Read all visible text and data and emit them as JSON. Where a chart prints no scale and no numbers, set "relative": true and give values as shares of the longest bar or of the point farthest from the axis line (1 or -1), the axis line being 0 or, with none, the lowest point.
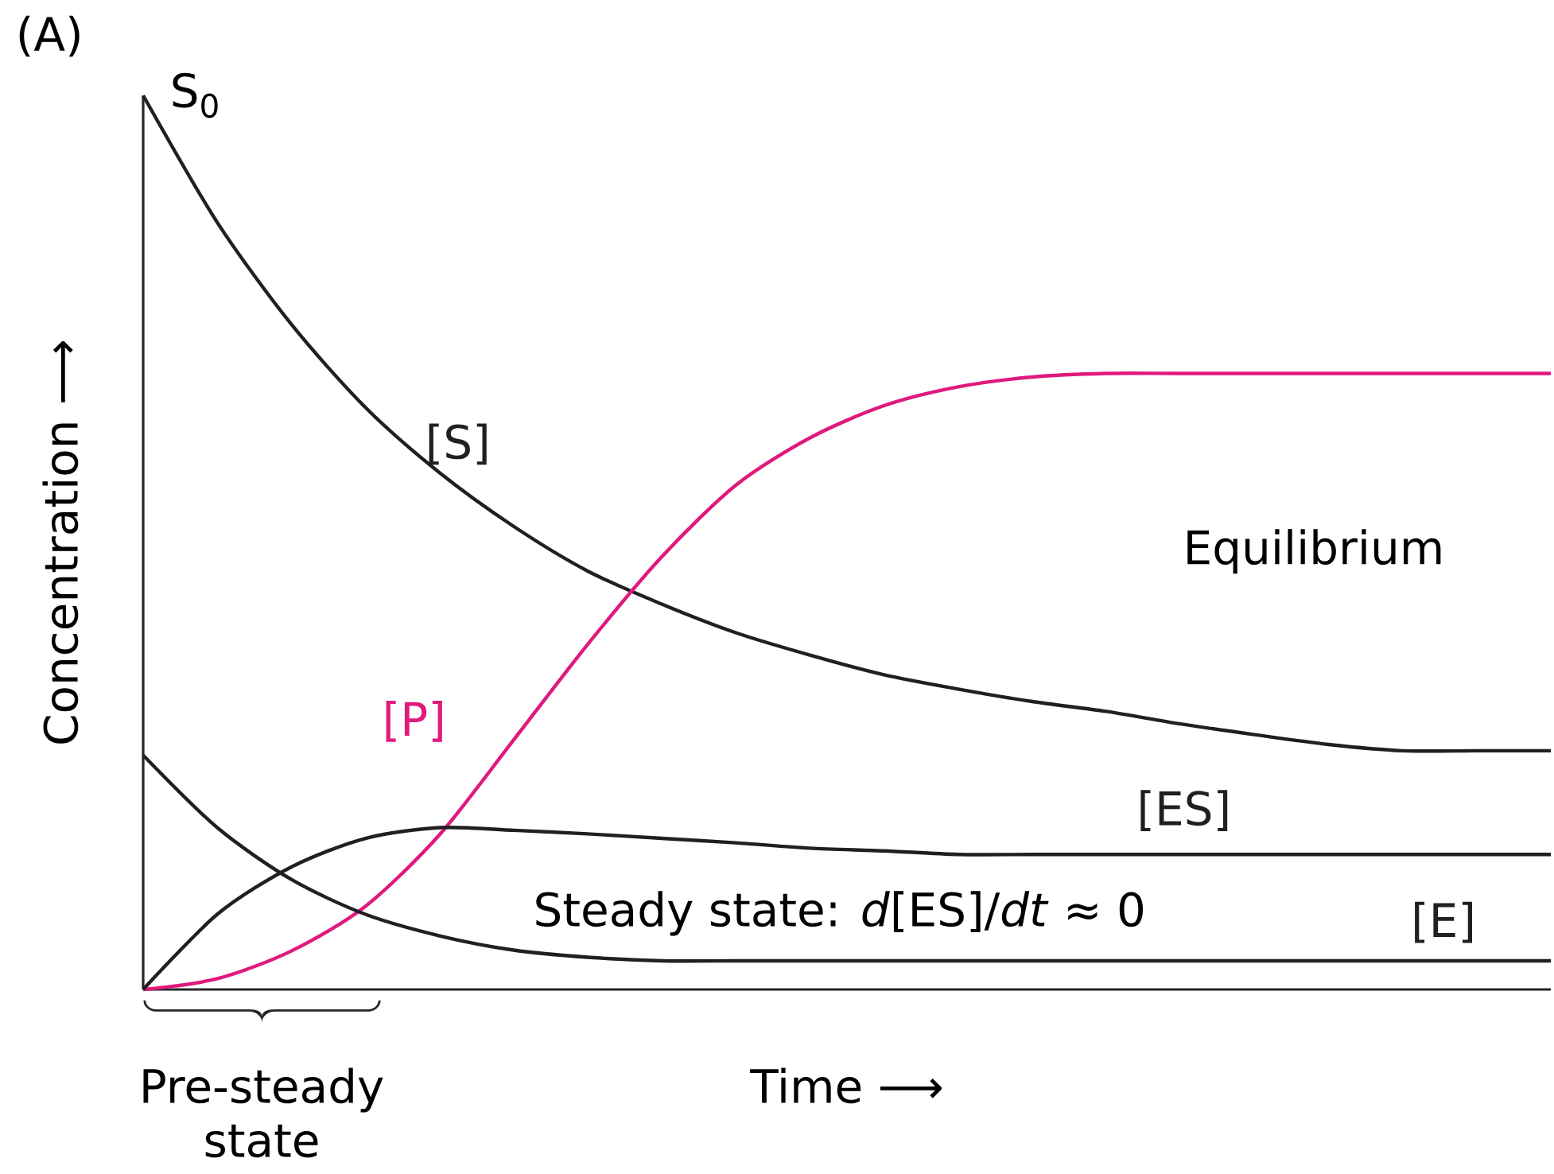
{
  "chart_data": {
    "type": "line",
    "relative": true,
    "xlabel": "Time ⟶",
    "ylabel": "Concentration ⟶",
    "categories": [
      null,
      null,
      null,
      null,
      null,
      null,
      null,
      null,
      null,
      null,
      null,
      null,
      null,
      null,
      null,
      null,
      null,
      null,
      null,
      null
    ],
    "series": [
      {
        "name": "[S]",
        "color": "#231f20",
        "values": [
          1.0,
          0.858,
          0.744,
          0.651,
          0.578,
          0.518,
          0.468,
          0.431,
          0.399,
          0.374,
          0.352,
          0.336,
          0.322,
          0.311,
          0.297,
          0.285,
          0.274,
          0.267,
          0.267,
          0.267
        ]
      },
      {
        "name": "[P]",
        "color": "#e0197d",
        "values": [
          0.0,
          0.012,
          0.043,
          0.093,
          0.173,
          0.279,
          0.386,
          0.484,
          0.564,
          0.617,
          0.653,
          0.674,
          0.685,
          0.689,
          0.689,
          0.689,
          0.689,
          0.689,
          0.689,
          0.689
        ]
      },
      {
        "name": "[ES]",
        "color": "#231f20",
        "values": [
          0.0,
          0.084,
          0.137,
          0.169,
          0.181,
          0.178,
          0.174,
          0.169,
          0.164,
          0.158,
          0.155,
          0.151,
          0.151,
          0.151,
          0.151,
          0.151,
          0.151,
          0.151,
          0.151,
          0.151
        ]
      },
      {
        "name": "[E]",
        "color": "#231f20",
        "values": [
          0.262,
          0.181,
          0.123,
          0.084,
          0.06,
          0.044,
          0.036,
          0.032,
          0.032,
          0.032,
          0.032,
          0.032,
          0.032,
          0.032,
          0.032,
          0.032,
          0.032,
          0.032,
          0.032,
          0.032
        ]
      }
    ],
    "annotations": [
      "(A)",
      "S$_{0}$",
      "Equilibrium",
      "Steady state: *d*[ES]/*dt* ≈ 0",
      "Pre-steady state"
    ],
    "legend": false,
    "marker": "none",
    "line_style": "solid"
  }
}
